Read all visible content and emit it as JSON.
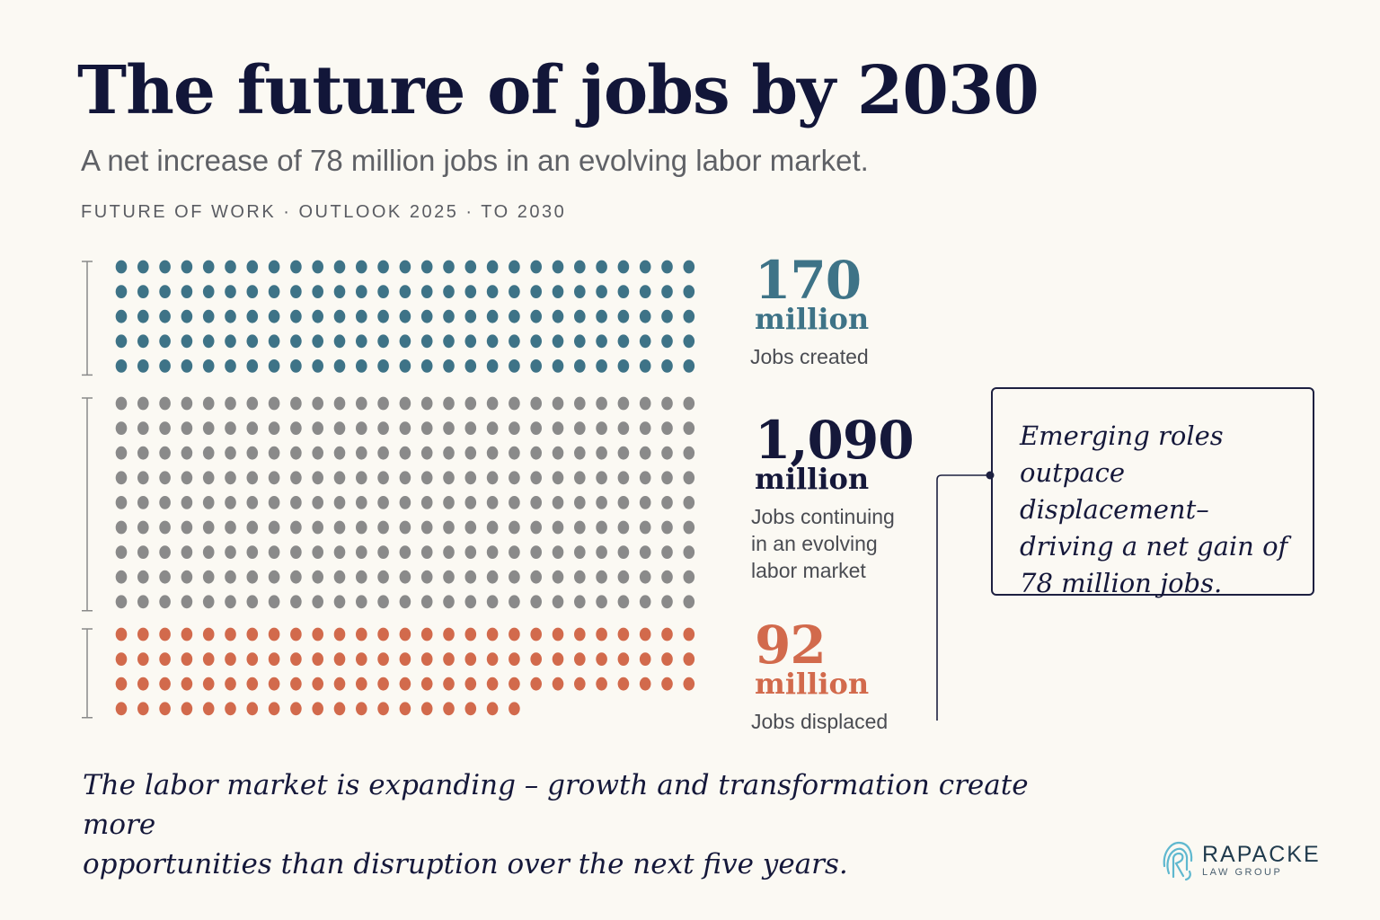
{
  "header": {
    "title": "The future of jobs by 2030",
    "subtitle": "A net increase of 78 million jobs in an evolving labor market.",
    "kicker": "FUTURE OF WORK · OUTLOOK 2025 · TO 2030"
  },
  "chart_data": {
    "type": "dot-matrix",
    "unit": "million",
    "series": [
      {
        "key": "created",
        "value": 170,
        "value_label": "170",
        "unit_label": "million",
        "description": "Jobs created",
        "color": "#3e7387",
        "dots": 135
      },
      {
        "key": "continuing",
        "value": 1090,
        "value_label": "1,090",
        "unit_label": "million",
        "description": "Jobs continuing in an evolving labor market",
        "color": "#8a8a8a",
        "dots": 243
      },
      {
        "key": "displaced",
        "value": 92,
        "value_label": "92",
        "unit_label": "million",
        "description": "Jobs displaced",
        "color": "#d26a4c",
        "dots": 100
      }
    ]
  },
  "stats": {
    "created": {
      "num": "170",
      "unit": "million",
      "desc": "Jobs created",
      "color": "#3e7387"
    },
    "continuing": {
      "num": "1,090",
      "unit": "million",
      "desc_lines": [
        "Jobs continuing",
        "in an evolving",
        "labor market"
      ],
      "color": "#15183a"
    },
    "displaced": {
      "num": "92",
      "unit": "million",
      "desc": "Jobs displaced",
      "color": "#d26a4c"
    }
  },
  "callout": {
    "lines": [
      "Emerging roles",
      "outpace displacement–",
      "driving a net gain of",
      "78 million jobs."
    ]
  },
  "closing": {
    "lines": [
      "The labor market is expanding – growth and transformation create more",
      "opportunities than disruption over the next five years."
    ]
  },
  "logo": {
    "name": "RAPACKE",
    "sub": "LAW GROUP",
    "icon": "fingerprint-icon",
    "color": "#5fb8cf"
  }
}
